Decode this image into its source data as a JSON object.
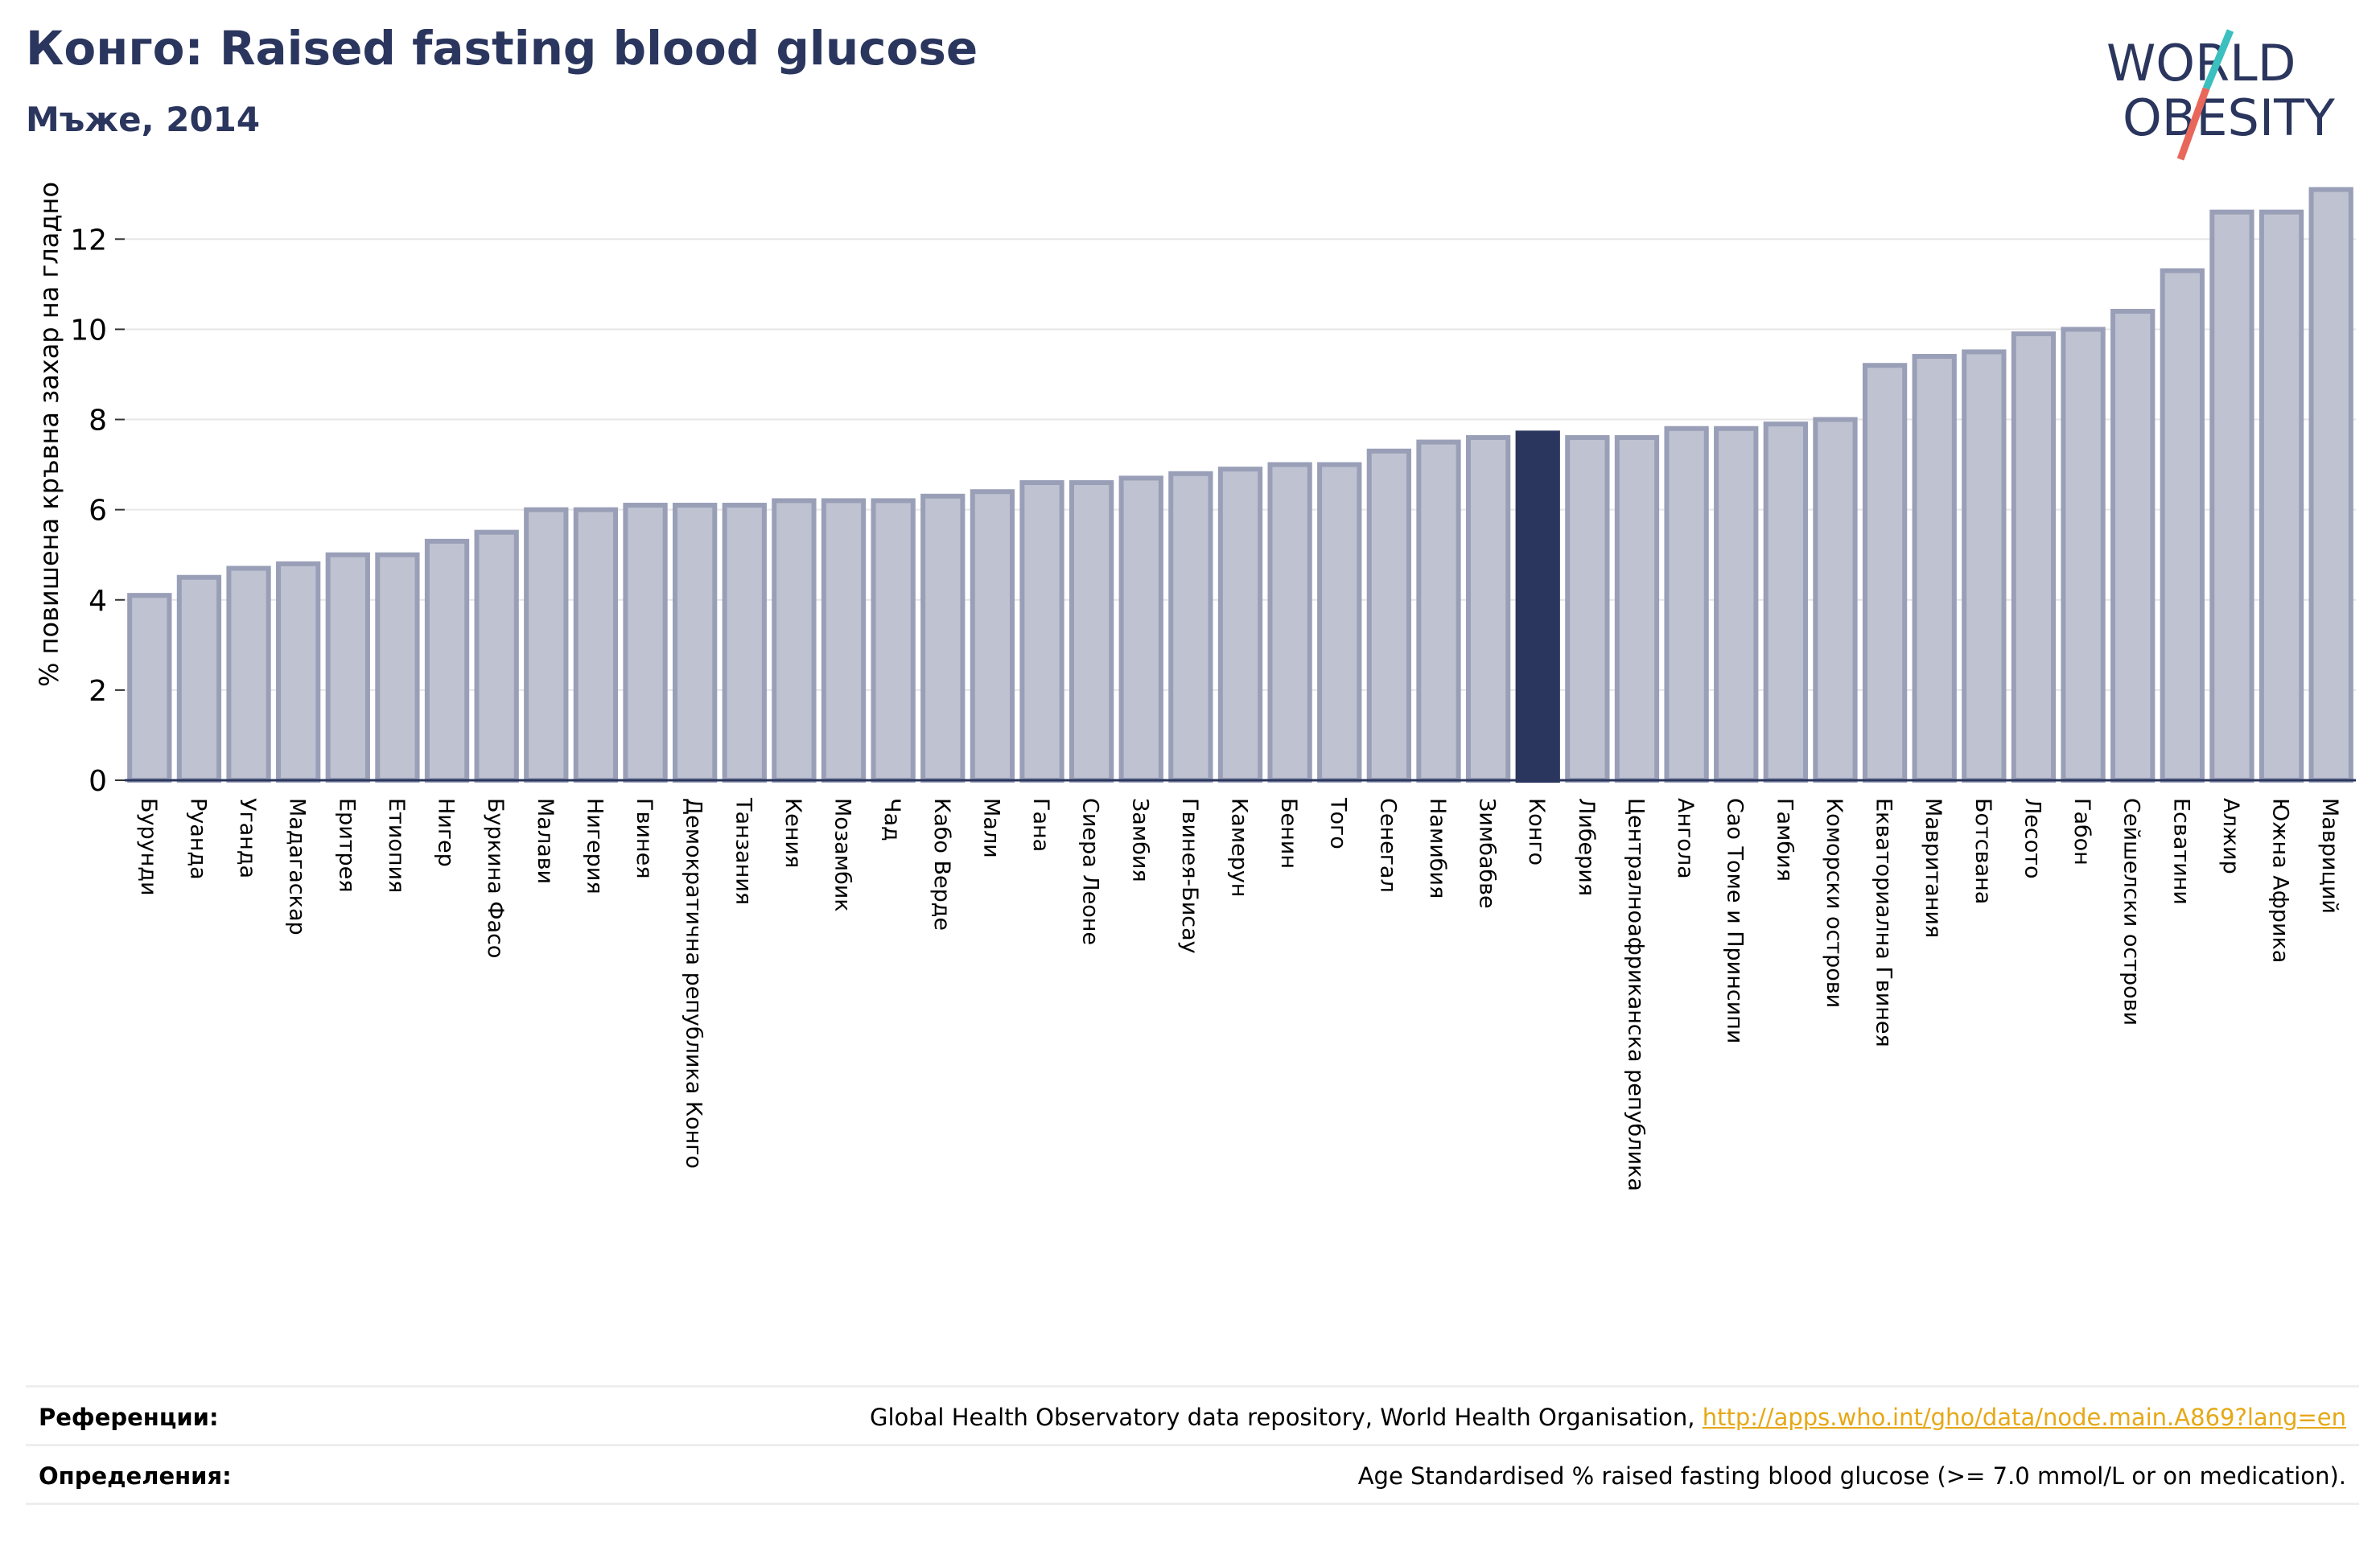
{
  "header": {
    "title": "Конго: Raised fasting blood glucose",
    "subtitle": "Мъже, 2014"
  },
  "logo": {
    "line1": "WORLD",
    "line2": "OBESITY",
    "colors": {
      "text": "#2b365e",
      "slash_top": "#3bbfbf",
      "slash_bottom": "#e8675a"
    }
  },
  "colors": {
    "bar_fill": "#bfc2d0",
    "bar_stroke": "#9a9fb8",
    "highlight": "#2b365e",
    "grid": "#e6e6e6",
    "link": "#e6a817"
  },
  "chart_data": {
    "type": "bar",
    "title": "Конго: Raised fasting blood glucose",
    "subtitle": "Мъже, 2014",
    "xlabel": "",
    "ylabel": "% повишена кръвна захар на гладно",
    "ylim": [
      0,
      13.2
    ],
    "yticks": [
      0,
      2,
      4,
      6,
      8,
      10,
      12
    ],
    "grid": true,
    "highlight": "Конго",
    "categories": [
      "Бурунди",
      "Руанда",
      "Уганда",
      "Мадагаскар",
      "Еритрея",
      "Етиопия",
      "Нигер",
      "Буркина Фасо",
      "Малави",
      "Нигерия",
      "Гвинея",
      "Демократична република Конго",
      "Танзания",
      "Кения",
      "Мозамбик",
      "Чад",
      "Кабо Верде",
      "Мали",
      "Гана",
      "Сиера Леоне",
      "Замбия",
      "Гвинея-Бисау",
      "Камерун",
      "Бенин",
      "Того",
      "Сенегал",
      "Намибия",
      "Зимбабве",
      "Конго",
      "Либерия",
      "Централноафриканска република",
      "Ангола",
      "Сао Томе и Принсипи",
      "Гамбия",
      "Коморски острови",
      "Екваториална Гвинея",
      "Мавритания",
      "Ботсвана",
      "Лесото",
      "Габон",
      "Сейшелски острови",
      "Есватини",
      "Алжир",
      "Южна Африка",
      "Мавриций"
    ],
    "values": [
      4.1,
      4.5,
      4.7,
      4.8,
      5.0,
      5.0,
      5.3,
      5.5,
      6.0,
      6.0,
      6.1,
      6.1,
      6.1,
      6.2,
      6.2,
      6.2,
      6.3,
      6.4,
      6.6,
      6.6,
      6.7,
      6.8,
      6.9,
      7.0,
      7.0,
      7.3,
      7.5,
      7.6,
      7.7,
      7.6,
      7.6,
      7.8,
      7.8,
      7.9,
      8.0,
      9.2,
      9.4,
      9.5,
      9.9,
      10.0,
      10.4,
      11.3,
      12.6,
      12.6,
      13.1
    ]
  },
  "footer": {
    "references_label": "Референции:",
    "references_text": "Global Health Observatory data repository, World Health Organisation, ",
    "references_link": "http://apps.who.int/gho/data/node.main.A869?lang=en",
    "definitions_label": "Определения:",
    "definitions_text": "Age Standardised % raised fasting blood glucose (>= 7.0 mmol/L or on medication)."
  }
}
